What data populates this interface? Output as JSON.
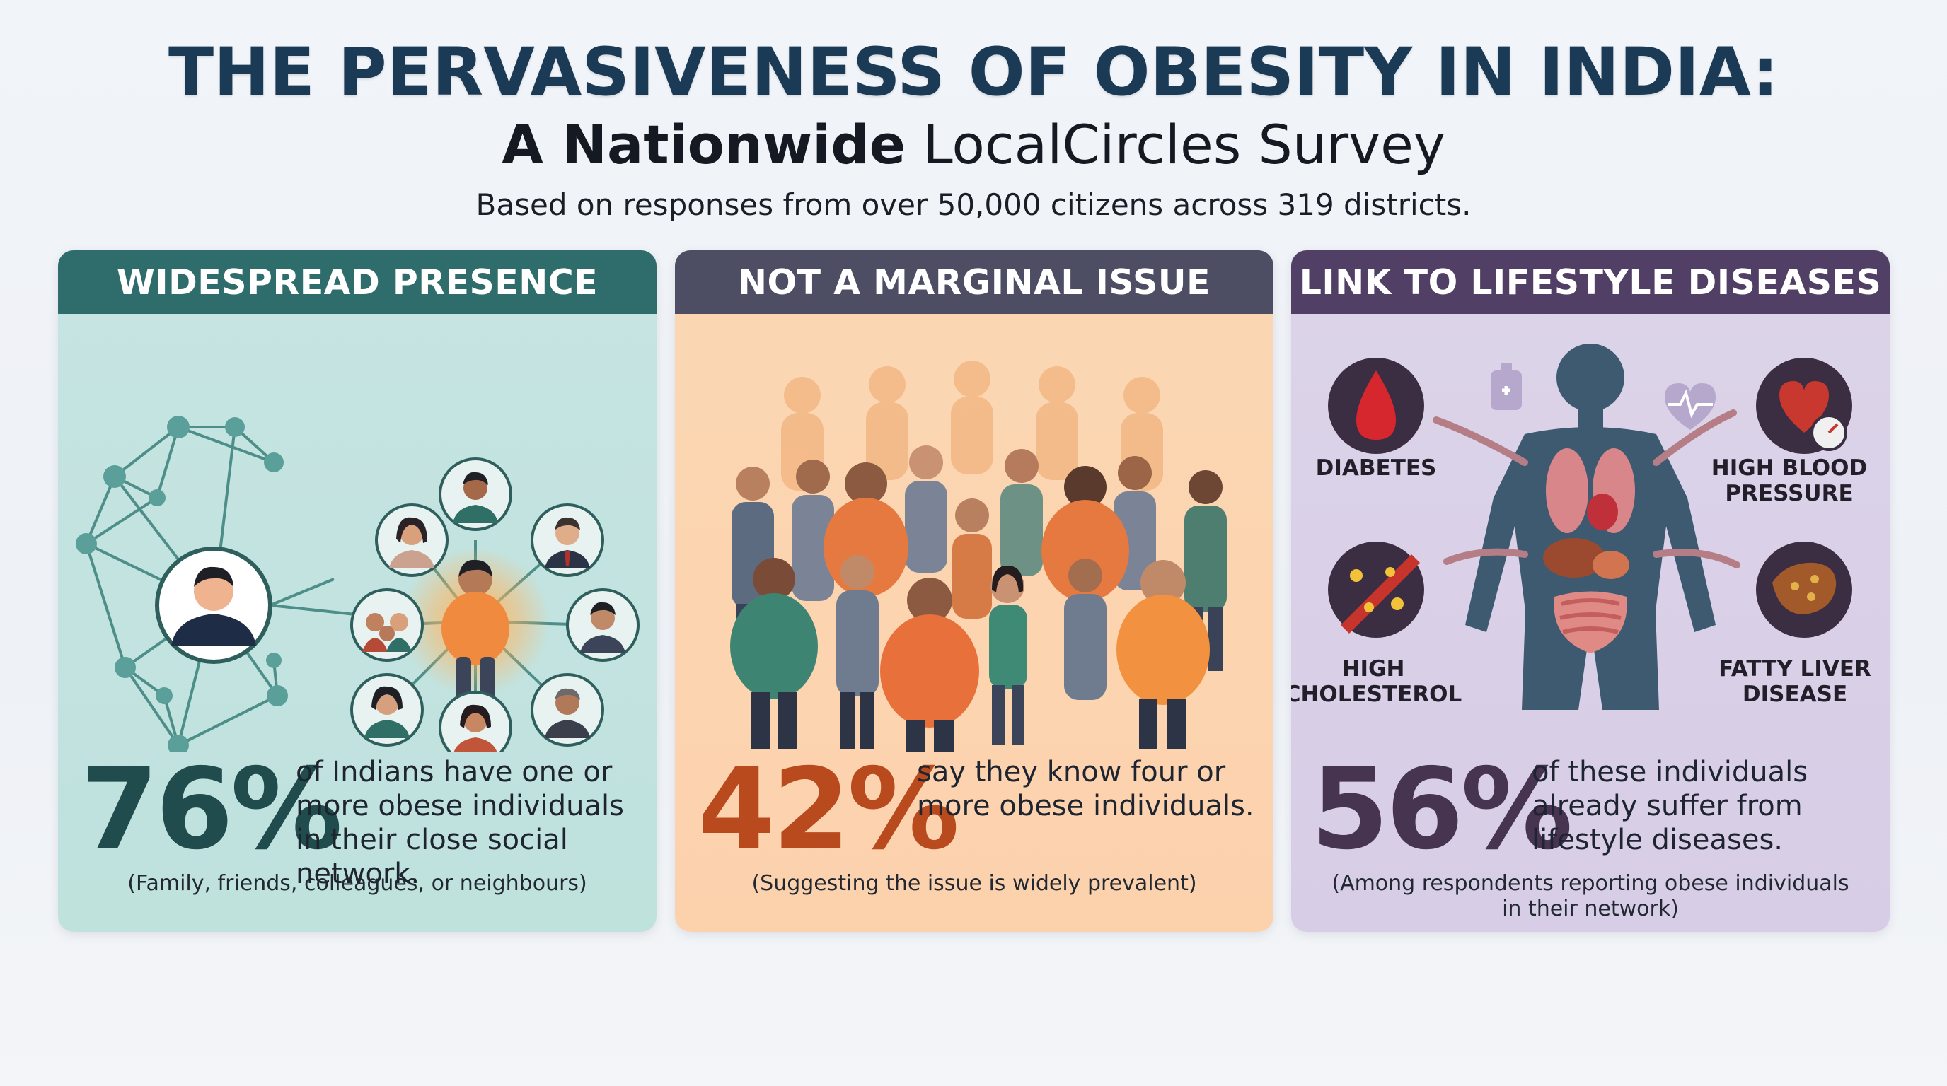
{
  "header": {
    "title": "THE PERVASIVENESS OF OBESITY IN INDIA:",
    "subtitle_bold": "A Nationwide",
    "subtitle_rest": " LocalCircles Survey",
    "tagline": "Based on responses from over 50,000 citizens across 319 districts."
  },
  "panels": [
    {
      "heading": "WIDESPREAD PRESENCE",
      "stat": "76%",
      "description": "of Indians have one or more obese individuals in their close social network.",
      "note": "(Family, friends, colleagues, or neighbours)",
      "accent": "#2f6d6c",
      "icon": "social-network-icon"
    },
    {
      "heading": "NOT A MARGINAL ISSUE",
      "stat": "42%",
      "description": "say they know four or more obese individuals.",
      "note": "(Suggesting the issue is widely prevalent)",
      "accent": "#4d4e63",
      "icon": "crowd-icon"
    },
    {
      "heading": "LINK TO LIFESTYLE DISEASES",
      "stat": "56%",
      "description": "of these individuals already suffer from lifestyle diseases.",
      "note": "(Among respondents reporting obese individuals in their network)",
      "accent": "#523f66",
      "icon": "body-organs-icon",
      "diseases": [
        "DIABETES",
        "HIGH BLOOD PRESSURE",
        "HIGH CHOLESTEROL",
        "FATTY LIVER DISEASE"
      ]
    }
  ]
}
